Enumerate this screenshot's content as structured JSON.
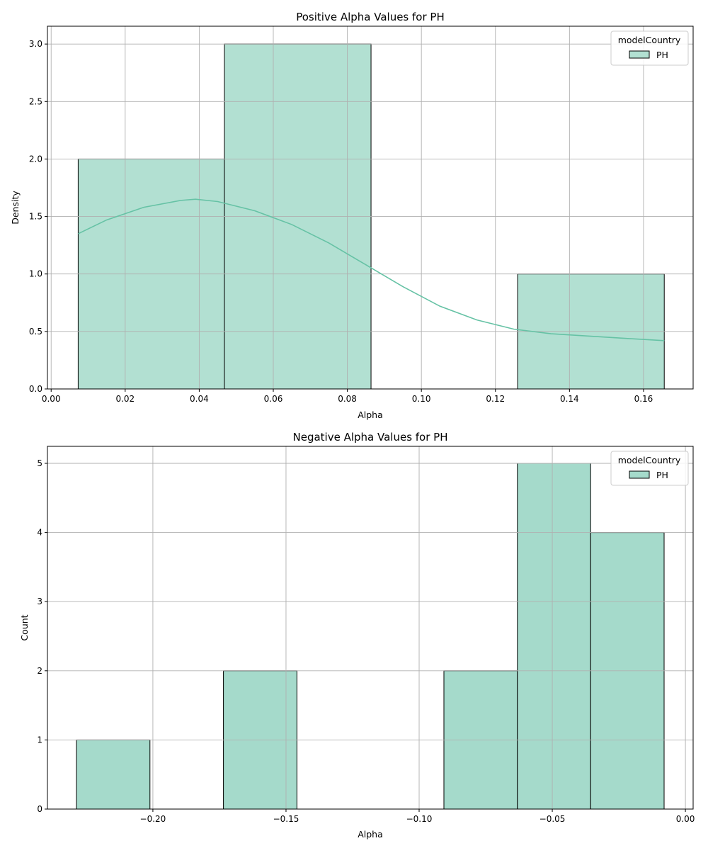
{
  "chart_data": [
    {
      "type": "bar",
      "title": "Positive Alpha Values for PH",
      "xlabel": "Alpha",
      "ylabel": "Density",
      "xlim": [
        -0.001,
        0.1734
      ],
      "ylim": [
        0,
        3.155
      ],
      "xticks": [
        0.0,
        0.02,
        0.04,
        0.06,
        0.08,
        0.1,
        0.12,
        0.14,
        0.16
      ],
      "xtick_labels": [
        "0.00",
        "0.02",
        "0.04",
        "0.06",
        "0.08",
        "0.10",
        "0.12",
        "0.14",
        "0.16"
      ],
      "yticks": [
        0,
        0.5,
        1.0,
        1.5,
        2.0,
        2.5,
        3.0
      ],
      "ytick_labels": [
        "0.0",
        "0.5",
        "1.0",
        "1.5",
        "2.0",
        "2.5",
        "3.0"
      ],
      "bin_edges": [
        0.0073,
        0.0468,
        0.0864,
        0.126,
        0.1656
      ],
      "values": [
        2,
        3,
        0,
        1
      ],
      "bar_color": "#b2e0d2",
      "kde": {
        "color": "#66c2a5",
        "x": [
          0.0073,
          0.015,
          0.025,
          0.035,
          0.039,
          0.045,
          0.055,
          0.065,
          0.075,
          0.085,
          0.095,
          0.105,
          0.115,
          0.125,
          0.135,
          0.145,
          0.155,
          0.1656
        ],
        "y": [
          1.35,
          1.47,
          1.58,
          1.64,
          1.65,
          1.63,
          1.55,
          1.43,
          1.27,
          1.08,
          0.89,
          0.72,
          0.6,
          0.52,
          0.48,
          0.46,
          0.44,
          0.42
        ]
      },
      "legend": {
        "title": "modelCountry",
        "entries": [
          "PH"
        ],
        "placement": "top-right"
      },
      "grid": true
    },
    {
      "type": "bar",
      "title": "Negative Alpha Values for PH",
      "xlabel": "Alpha",
      "ylabel": "Count",
      "xlim": [
        -0.2396,
        0.0029
      ],
      "ylim": [
        0,
        5.246
      ],
      "xticks": [
        -0.2,
        -0.15,
        -0.1,
        -0.05,
        0.0
      ],
      "xtick_labels": [
        "−0.20",
        "−0.15",
        "−0.10",
        "−0.05",
        "0.00"
      ],
      "yticks": [
        0,
        1,
        2,
        3,
        4,
        5
      ],
      "ytick_labels": [
        "0",
        "1",
        "2",
        "3",
        "4",
        "5"
      ],
      "bin_edges": [
        -0.2287,
        -0.2011,
        -0.1735,
        -0.1459,
        -0.1183,
        -0.0907,
        -0.0631,
        -0.0356,
        -0.008
      ],
      "values": [
        1,
        0,
        2,
        0,
        0,
        2,
        5,
        4
      ],
      "bar_color": "#a5dacb",
      "legend": {
        "title": "modelCountry",
        "entries": [
          "PH"
        ],
        "placement": "top-right"
      },
      "grid": true
    }
  ]
}
